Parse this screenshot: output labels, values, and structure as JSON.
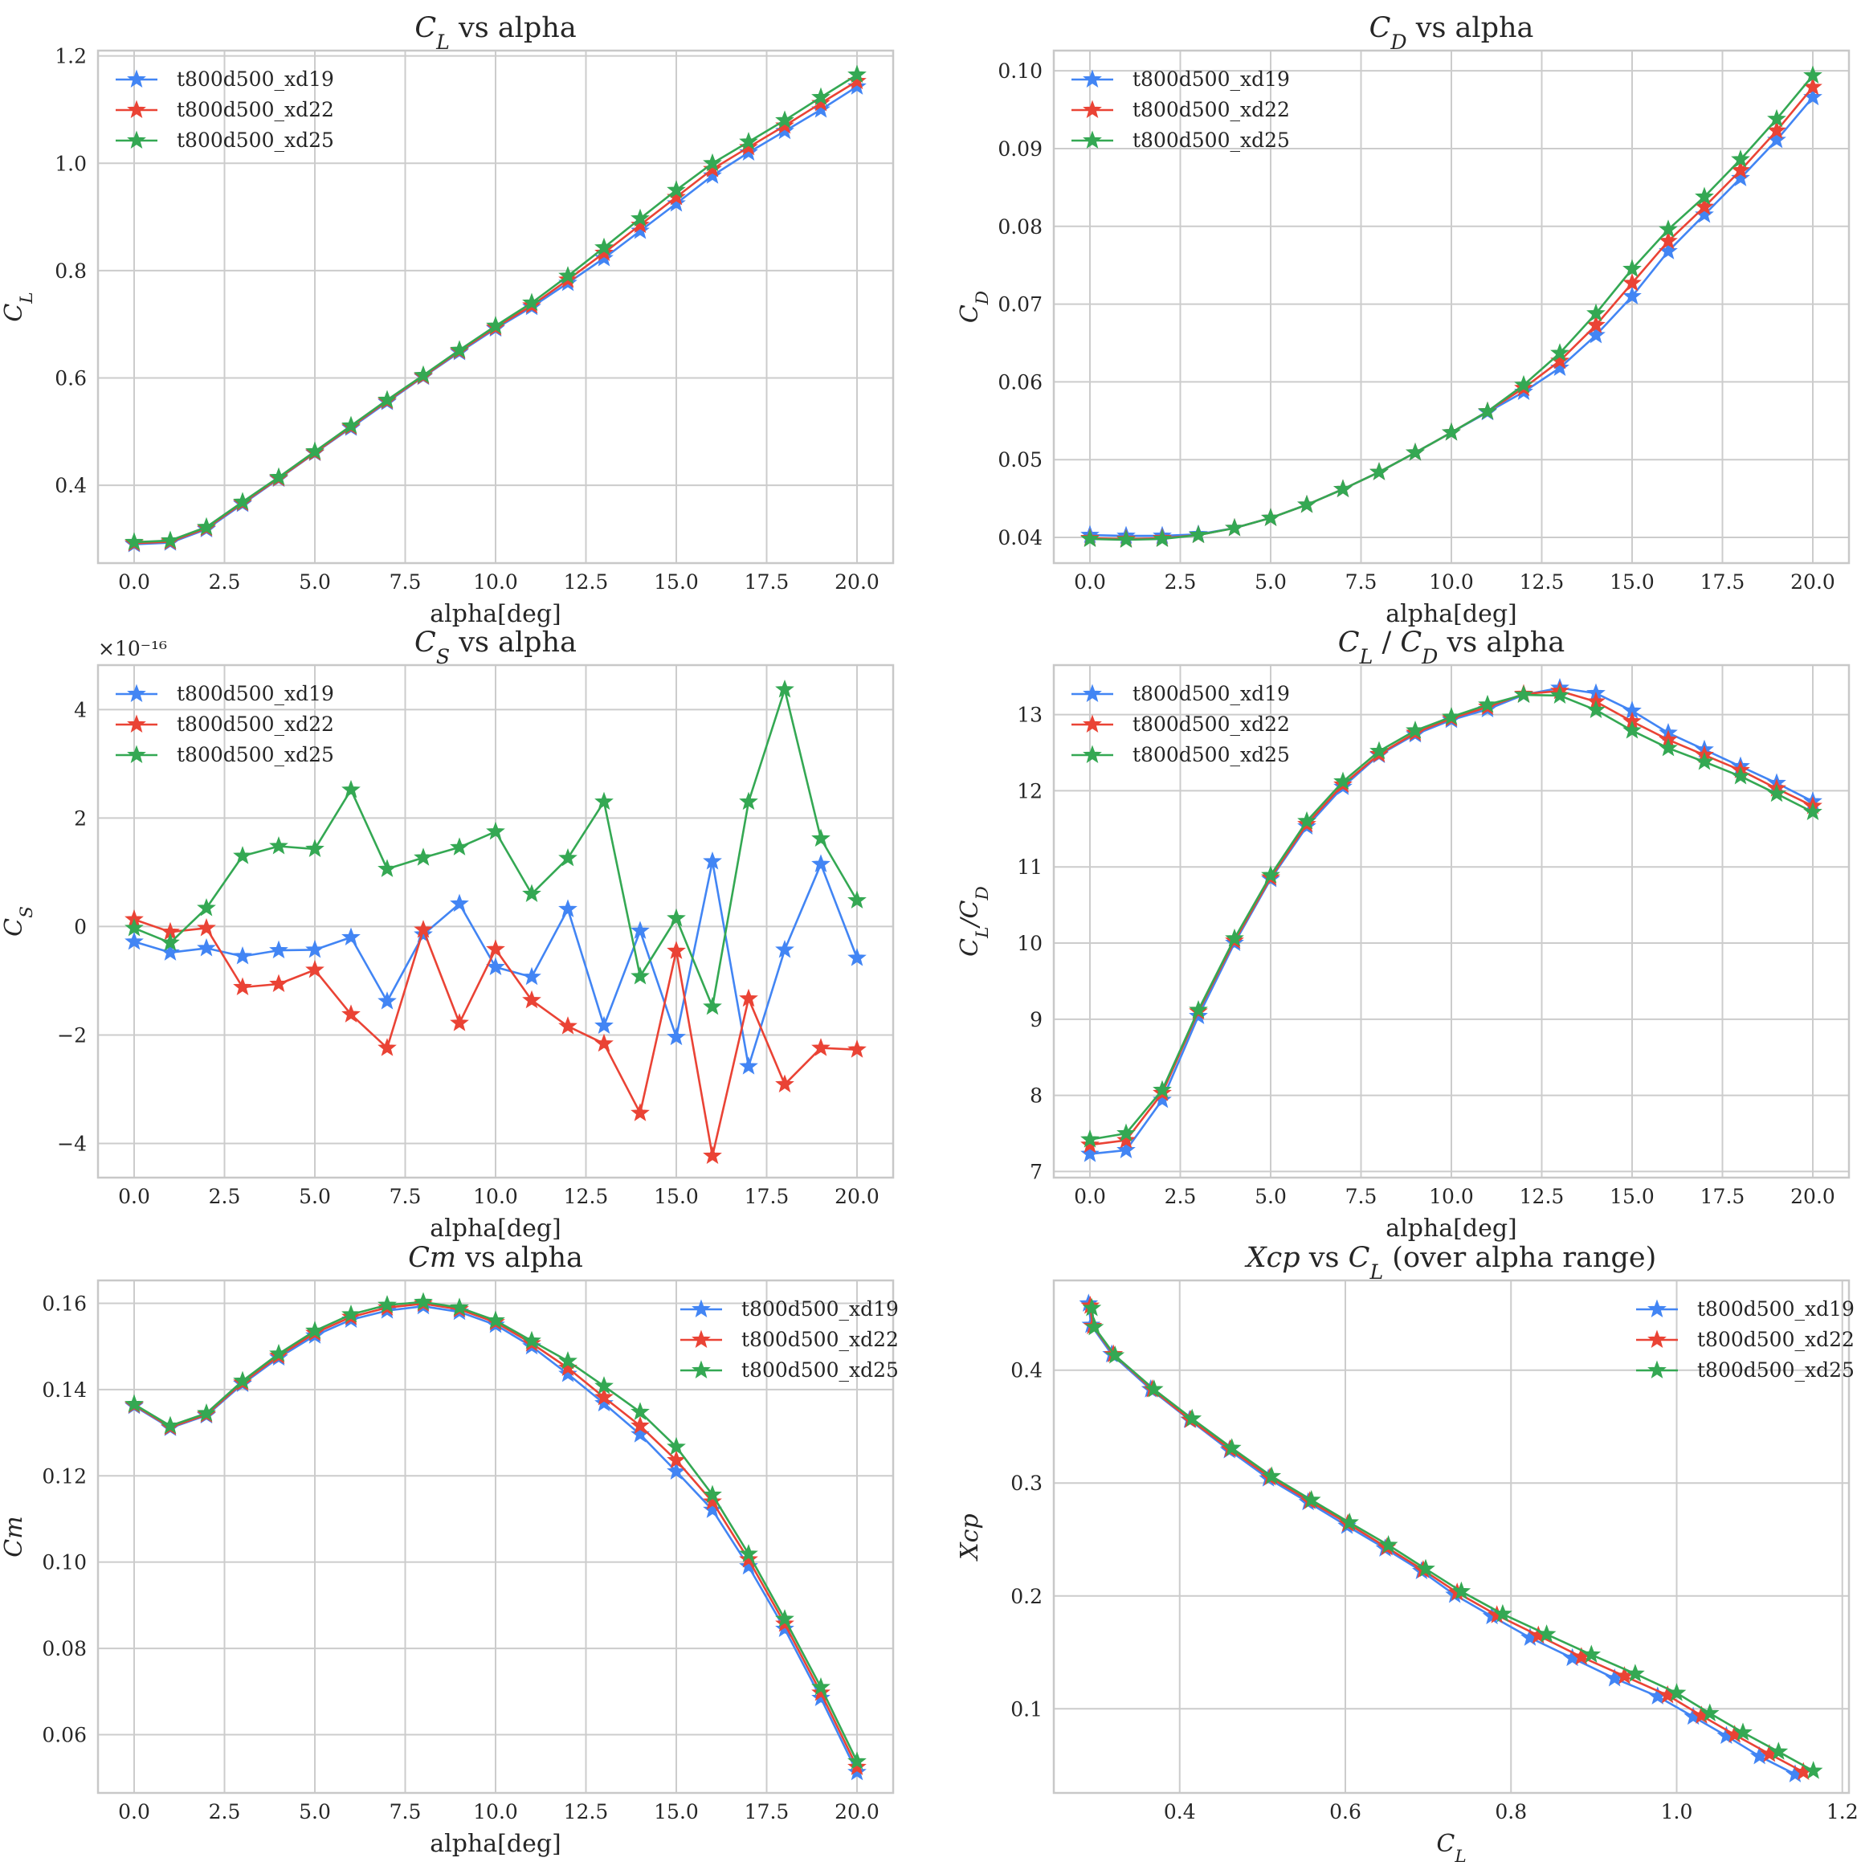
{
  "colors": {
    "t800d500_xd19": "#4285f4",
    "t800d500_xd22": "#ea4335",
    "t800d500_xd25": "#34a853"
  },
  "chart_data": [
    {
      "type": "line",
      "title": "C_L vs alpha",
      "title_parts": [
        {
          "t": "C",
          "sub": "L",
          "it": true
        },
        {
          "t": " vs alpha"
        }
      ],
      "xlabel": "alpha[deg]",
      "ylabel": "C_L",
      "ylabel_parts": [
        {
          "t": "C",
          "sub": "L",
          "it": true
        }
      ],
      "xlim": [
        -1,
        21
      ],
      "ylim": [
        0.255,
        1.21
      ],
      "xticks": [
        0,
        2.5,
        5,
        7.5,
        10,
        12.5,
        15,
        17.5,
        20
      ],
      "xticklabels": [
        "0.0",
        "2.5",
        "5.0",
        "7.5",
        "10.0",
        "12.5",
        "15.0",
        "17.5",
        "20.0"
      ],
      "yticks": [
        0.4,
        0.6,
        0.8,
        1.0,
        1.2
      ],
      "yticklabels": [
        "0.4",
        "0.6",
        "0.8",
        "1.0",
        "1.2"
      ],
      "legend_position": "top-left",
      "x": [
        0,
        1,
        2,
        3,
        4,
        5,
        6,
        7,
        8,
        9,
        10,
        11,
        12,
        13,
        14,
        15,
        16,
        17,
        18,
        19,
        20
      ],
      "series": [
        {
          "name": "t800d500_xd19",
          "values": [
            0.29,
            0.293,
            0.318,
            0.365,
            0.412,
            0.46,
            0.507,
            0.555,
            0.602,
            0.648,
            0.692,
            0.732,
            0.777,
            0.823,
            0.874,
            0.925,
            0.977,
            1.02,
            1.06,
            1.1,
            1.143
          ]
        },
        {
          "name": "t800d500_xd22",
          "values": [
            0.292,
            0.295,
            0.32,
            0.367,
            0.413,
            0.461,
            0.509,
            0.557,
            0.603,
            0.65,
            0.694,
            0.735,
            0.783,
            0.833,
            0.885,
            0.937,
            0.989,
            1.03,
            1.07,
            1.112,
            1.153
          ]
        },
        {
          "name": "t800d500_xd25",
          "values": [
            0.294,
            0.297,
            0.322,
            0.369,
            0.415,
            0.463,
            0.511,
            0.559,
            0.605,
            0.652,
            0.697,
            0.74,
            0.79,
            0.843,
            0.897,
            0.95,
            1.0,
            1.04,
            1.08,
            1.123,
            1.165
          ]
        }
      ]
    },
    {
      "type": "line",
      "title": "C_D vs alpha",
      "title_parts": [
        {
          "t": "C",
          "sub": "D",
          "it": true
        },
        {
          "t": " vs alpha"
        }
      ],
      "xlabel": "alpha[deg]",
      "ylabel": "C_D",
      "ylabel_parts": [
        {
          "t": "C",
          "sub": "D",
          "it": true
        }
      ],
      "xlim": [
        -1,
        21
      ],
      "ylim": [
        0.0367,
        0.1026
      ],
      "xticks": [
        0,
        2.5,
        5,
        7.5,
        10,
        12.5,
        15,
        17.5,
        20
      ],
      "xticklabels": [
        "0.0",
        "2.5",
        "5.0",
        "7.5",
        "10.0",
        "12.5",
        "15.0",
        "17.5",
        "20.0"
      ],
      "yticks": [
        0.04,
        0.05,
        0.06,
        0.07,
        0.08,
        0.09,
        0.1
      ],
      "yticklabels": [
        "0.04",
        "0.05",
        "0.06",
        "0.07",
        "0.08",
        "0.09",
        "0.10"
      ],
      "legend_position": "top-left",
      "x": [
        0,
        1,
        2,
        3,
        4,
        5,
        6,
        7,
        8,
        9,
        10,
        11,
        12,
        13,
        14,
        15,
        16,
        17,
        18,
        19,
        20
      ],
      "series": [
        {
          "name": "t800d500_xd19",
          "values": [
            0.0403,
            0.0402,
            0.0402,
            0.0404,
            0.0412,
            0.0425,
            0.0442,
            0.0462,
            0.0484,
            0.0509,
            0.0535,
            0.0561,
            0.0587,
            0.0618,
            0.066,
            0.071,
            0.0768,
            0.0815,
            0.0862,
            0.0911,
            0.0966
          ]
        },
        {
          "name": "t800d500_xd22",
          "values": [
            0.0399,
            0.0398,
            0.0399,
            0.0403,
            0.0412,
            0.0425,
            0.0442,
            0.0462,
            0.0484,
            0.0509,
            0.0535,
            0.0562,
            0.0592,
            0.0627,
            0.0673,
            0.0727,
            0.0781,
            0.0825,
            0.0872,
            0.0923,
            0.0979
          ]
        },
        {
          "name": "t800d500_xd25",
          "values": [
            0.0398,
            0.0397,
            0.0398,
            0.0403,
            0.0412,
            0.0425,
            0.0442,
            0.0462,
            0.0484,
            0.0509,
            0.0535,
            0.0562,
            0.0596,
            0.0637,
            0.0688,
            0.0745,
            0.0796,
            0.0838,
            0.0886,
            0.0938,
            0.0994
          ]
        }
      ]
    },
    {
      "type": "line",
      "title": "C_S vs alpha",
      "title_parts": [
        {
          "t": "C",
          "sub": "S",
          "it": true
        },
        {
          "t": " vs alpha"
        }
      ],
      "xlabel": "alpha[deg]",
      "ylabel": "C_S",
      "ylabel_parts": [
        {
          "t": "C",
          "sub": "S",
          "it": true
        }
      ],
      "offset_text": "×10⁻¹⁶",
      "xlim": [
        -1,
        21
      ],
      "ylim": [
        -4.63,
        4.82
      ],
      "xticks": [
        0,
        2.5,
        5,
        7.5,
        10,
        12.5,
        15,
        17.5,
        20
      ],
      "xticklabels": [
        "0.0",
        "2.5",
        "5.0",
        "7.5",
        "10.0",
        "12.5",
        "15.0",
        "17.5",
        "20.0"
      ],
      "yticks": [
        -4,
        -2,
        0,
        2,
        4
      ],
      "yticklabels": [
        "−4",
        "−2",
        "0",
        "2",
        "4"
      ],
      "legend_position": "top-left",
      "x": [
        0,
        1,
        2,
        3,
        4,
        5,
        6,
        7,
        8,
        9,
        10,
        11,
        12,
        13,
        14,
        15,
        16,
        17,
        18,
        19,
        20
      ],
      "series": [
        {
          "name": "t800d500_xd19",
          "values": [
            -0.28,
            -0.48,
            -0.4,
            -0.55,
            -0.44,
            -0.43,
            -0.2,
            -1.38,
            -0.15,
            0.42,
            -0.75,
            -0.93,
            0.32,
            -1.83,
            -0.08,
            -2.04,
            1.2,
            -2.58,
            -0.43,
            1.15,
            -0.58
          ]
        },
        {
          "name": "t800d500_xd22",
          "values": [
            0.13,
            -0.1,
            -0.03,
            -1.12,
            -1.06,
            -0.8,
            -1.62,
            -2.24,
            -0.06,
            -1.78,
            -0.42,
            -1.36,
            -1.84,
            -2.16,
            -3.44,
            -0.45,
            -4.23,
            -1.33,
            -2.91,
            -2.24,
            -2.27
          ]
        },
        {
          "name": "t800d500_xd25",
          "values": [
            -0.03,
            -0.3,
            0.34,
            1.3,
            1.48,
            1.43,
            2.52,
            1.06,
            1.27,
            1.46,
            1.75,
            0.6,
            1.26,
            2.3,
            -0.92,
            0.15,
            -1.48,
            2.3,
            4.37,
            1.62,
            0.48
          ]
        }
      ]
    },
    {
      "type": "line",
      "title": "C_L / C_D vs alpha",
      "title_parts": [
        {
          "t": "C",
          "sub": "L",
          "it": true
        },
        {
          "t": " / "
        },
        {
          "t": "C",
          "sub": "D",
          "it": true
        },
        {
          "t": " vs alpha"
        }
      ],
      "xlabel": "alpha[deg]",
      "ylabel": "C_L/C_D",
      "ylabel_parts": [
        {
          "t": "C",
          "sub": "L",
          "it": true
        },
        {
          "t": "/",
          "it": true
        },
        {
          "t": "C",
          "sub": "D",
          "it": true
        }
      ],
      "xlim": [
        -1,
        21
      ],
      "ylim": [
        6.92,
        13.65
      ],
      "xticks": [
        0,
        2.5,
        5,
        7.5,
        10,
        12.5,
        15,
        17.5,
        20
      ],
      "xticklabels": [
        "0.0",
        "2.5",
        "5.0",
        "7.5",
        "10.0",
        "12.5",
        "15.0",
        "17.5",
        "20.0"
      ],
      "yticks": [
        7,
        8,
        9,
        10,
        11,
        12,
        13
      ],
      "yticklabels": [
        "7",
        "8",
        "9",
        "10",
        "11",
        "12",
        "13"
      ],
      "legend_position": "top-left",
      "x": [
        0,
        1,
        2,
        3,
        4,
        5,
        6,
        7,
        8,
        9,
        10,
        11,
        12,
        13,
        14,
        15,
        16,
        17,
        18,
        19,
        20
      ],
      "series": [
        {
          "name": "t800d500_xd19",
          "values": [
            7.23,
            7.28,
            7.94,
            9.04,
            10.0,
            10.84,
            11.53,
            12.05,
            12.47,
            12.74,
            12.93,
            13.07,
            13.26,
            13.35,
            13.28,
            13.05,
            12.76,
            12.54,
            12.32,
            12.1,
            11.86
          ]
        },
        {
          "name": "t800d500_xd22",
          "values": [
            7.35,
            7.41,
            8.03,
            9.1,
            10.03,
            10.86,
            11.56,
            12.08,
            12.48,
            12.76,
            12.95,
            13.1,
            13.27,
            13.31,
            13.17,
            12.91,
            12.67,
            12.47,
            12.27,
            12.03,
            11.8
          ]
        },
        {
          "name": "t800d500_xd25",
          "values": [
            7.42,
            7.5,
            8.07,
            9.12,
            10.06,
            10.89,
            11.6,
            12.12,
            12.52,
            12.79,
            12.97,
            13.13,
            13.26,
            13.25,
            13.06,
            12.79,
            12.56,
            12.38,
            12.19,
            11.96,
            11.72
          ]
        }
      ]
    },
    {
      "type": "line",
      "title": "Cm vs alpha",
      "title_parts": [
        {
          "t": "Cm",
          "it": true
        },
        {
          "t": " vs alpha"
        }
      ],
      "xlabel": "alpha[deg]",
      "ylabel": "Cm",
      "ylabel_parts": [
        {
          "t": "Cm",
          "it": true
        }
      ],
      "xlim": [
        -1,
        21
      ],
      "ylim": [
        0.0465,
        0.1653
      ],
      "xticks": [
        0,
        2.5,
        5,
        7.5,
        10,
        12.5,
        15,
        17.5,
        20
      ],
      "xticklabels": [
        "0.0",
        "2.5",
        "5.0",
        "7.5",
        "10.0",
        "12.5",
        "15.0",
        "17.5",
        "20.0"
      ],
      "yticks": [
        0.06,
        0.08,
        0.1,
        0.12,
        0.14,
        0.16
      ],
      "yticklabels": [
        "0.06",
        "0.08",
        "0.10",
        "0.12",
        "0.14",
        "0.16"
      ],
      "legend_position": "top-right",
      "x": [
        0,
        1,
        2,
        3,
        4,
        5,
        6,
        7,
        8,
        9,
        10,
        11,
        12,
        13,
        14,
        15,
        16,
        17,
        18,
        19,
        20
      ],
      "series": [
        {
          "name": "t800d500_xd19",
          "values": [
            0.1362,
            0.1311,
            0.134,
            0.1413,
            0.1474,
            0.1525,
            0.1562,
            0.1583,
            0.1593,
            0.158,
            0.155,
            0.15,
            0.1436,
            0.1368,
            0.1296,
            0.121,
            0.1121,
            0.099,
            0.0845,
            0.0685,
            0.0513
          ]
        },
        {
          "name": "t800d500_xd22",
          "values": [
            0.1364,
            0.1313,
            0.1342,
            0.1416,
            0.1478,
            0.1531,
            0.1568,
            0.159,
            0.1599,
            0.1586,
            0.1556,
            0.1507,
            0.145,
            0.1382,
            0.1316,
            0.1236,
            0.114,
            0.1006,
            0.0857,
            0.0697,
            0.0525
          ]
        },
        {
          "name": "t800d500_xd25",
          "values": [
            0.1366,
            0.1316,
            0.1345,
            0.142,
            0.1483,
            0.1536,
            0.1574,
            0.1596,
            0.1603,
            0.159,
            0.156,
            0.1513,
            0.1466,
            0.1408,
            0.1348,
            0.1267,
            0.1156,
            0.1019,
            0.0868,
            0.071,
            0.0538
          ]
        }
      ]
    },
    {
      "type": "line",
      "title": "Xcp vs C_L (over alpha range)",
      "title_parts": [
        {
          "t": "Xcp",
          "it": true
        },
        {
          "t": " vs "
        },
        {
          "t": "C",
          "sub": "L",
          "it": true
        },
        {
          "t": " (over alpha range)"
        }
      ],
      "xlabel": "C_L",
      "xlabel_parts": [
        {
          "t": "C",
          "sub": "L",
          "it": true
        }
      ],
      "ylabel": "Xcp",
      "ylabel_parts": [
        {
          "t": "Xcp",
          "it": true
        }
      ],
      "xlim": [
        0.248,
        1.208
      ],
      "ylim": [
        0.0255,
        0.4795
      ],
      "xticks": [
        0.4,
        0.6,
        0.8,
        1.0,
        1.2
      ],
      "xticklabels": [
        "0.4",
        "0.6",
        "0.8",
        "1.0",
        "1.2"
      ],
      "yticks": [
        0.1,
        0.2,
        0.3,
        0.4
      ],
      "yticklabels": [
        "0.1",
        "0.2",
        "0.3",
        "0.4"
      ],
      "legend_position": "top-right",
      "series": [
        {
          "name": "t800d500_xd19",
          "x": [
            0.29,
            0.293,
            0.318,
            0.365,
            0.412,
            0.46,
            0.507,
            0.555,
            0.602,
            0.648,
            0.692,
            0.732,
            0.777,
            0.823,
            0.874,
            0.925,
            0.977,
            1.02,
            1.06,
            1.1,
            1.143
          ],
          "values": [
            0.459,
            0.44,
            0.414,
            0.383,
            0.356,
            0.329,
            0.304,
            0.283,
            0.262,
            0.242,
            0.222,
            0.201,
            0.182,
            0.163,
            0.145,
            0.127,
            0.111,
            0.093,
            0.076,
            0.058,
            0.042
          ]
        },
        {
          "name": "t800d500_xd22",
          "x": [
            0.292,
            0.295,
            0.32,
            0.367,
            0.413,
            0.461,
            0.509,
            0.557,
            0.603,
            0.65,
            0.694,
            0.735,
            0.783,
            0.833,
            0.885,
            0.937,
            0.989,
            1.03,
            1.07,
            1.112,
            1.153
          ],
          "values": [
            0.457,
            0.439,
            0.414,
            0.383,
            0.356,
            0.33,
            0.305,
            0.284,
            0.264,
            0.243,
            0.223,
            0.203,
            0.183,
            0.165,
            0.146,
            0.129,
            0.112,
            0.094,
            0.077,
            0.06,
            0.044
          ]
        },
        {
          "name": "t800d500_xd25",
          "x": [
            0.294,
            0.297,
            0.322,
            0.369,
            0.415,
            0.463,
            0.511,
            0.559,
            0.605,
            0.652,
            0.697,
            0.74,
            0.79,
            0.843,
            0.897,
            0.95,
            1.0,
            1.04,
            1.08,
            1.123,
            1.165
          ],
          "values": [
            0.455,
            0.438,
            0.413,
            0.383,
            0.357,
            0.331,
            0.306,
            0.285,
            0.265,
            0.245,
            0.224,
            0.204,
            0.184,
            0.166,
            0.148,
            0.131,
            0.114,
            0.096,
            0.079,
            0.062,
            0.045
          ]
        }
      ]
    }
  ]
}
